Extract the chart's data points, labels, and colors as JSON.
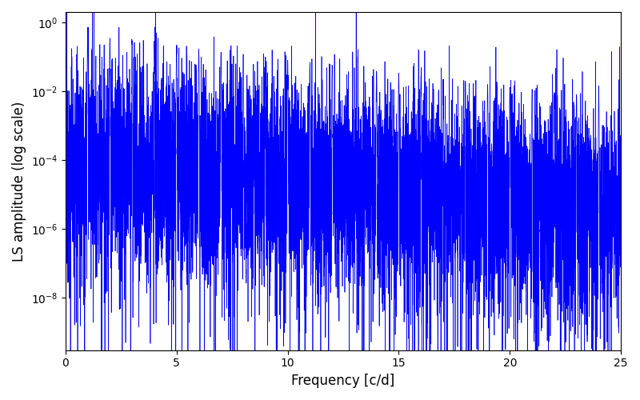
{
  "freq_min": 0.0,
  "freq_max": 25.0,
  "n_points": 8000,
  "ylabel": "LS amplitude (log scale)",
  "xlabel": "Frequency [c/d]",
  "title": "",
  "line_color": "#0000ff",
  "line_width": 0.5,
  "ylim_bottom": 3e-10,
  "ylim_top": 2.0,
  "xlim_left": 0.0,
  "xlim_right": 25.0,
  "yscale": "log",
  "figsize": [
    8.0,
    5.0
  ],
  "dpi": 100,
  "background_color": "#ffffff",
  "seed": 12345
}
